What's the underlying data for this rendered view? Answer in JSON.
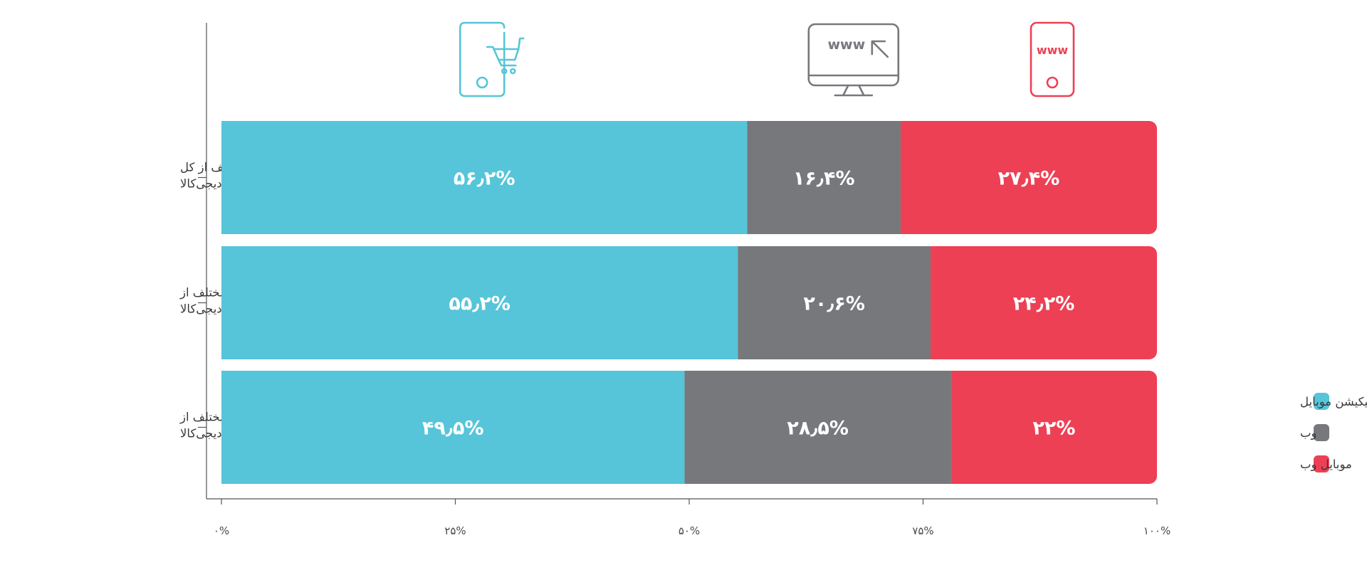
{
  "chart_data": {
    "type": "bar",
    "orientation": "horizontal",
    "stacked": true,
    "categories": [
      [
        "سهم ابزارهای مختلف از کل",
        "بازدیدهای دیجی‌کالا"
      ],
      [
        "سهم ابزارهای مختلف از",
        "تعداد سفارش‌های دیجی‌کالا"
      ],
      [
        "سهم ابزارهای مختلف از",
        "حجم فروش ریالی دیجی‌کالا"
      ]
    ],
    "series": [
      {
        "name": "اپلیکیشن موبایل",
        "color": "#56c5d9",
        "icon": "mobile-cart-icon",
        "values": [
          56.2,
          55.2,
          49.5
        ],
        "labels": [
          "۵۶٫۲%",
          "۵۵٫۲%",
          "۴۹٫۵%"
        ]
      },
      {
        "name": "وب",
        "color": "#77787c",
        "icon": "desktop-www-icon",
        "values": [
          16.4,
          20.6,
          28.5
        ],
        "labels": [
          "۱۶٫۴%",
          "۲۰٫۶%",
          "۲۸٫۵%"
        ]
      },
      {
        "name": "موبایل وب",
        "color": "#ed4055",
        "icon": "mobile-www-icon",
        "values": [
          27.4,
          24.2,
          22
        ],
        "labels": [
          "۲۷٫۴%",
          "۲۴٫۲%",
          "۲۲%"
        ]
      }
    ],
    "xlim": [
      0,
      100
    ],
    "x_ticks": [
      0,
      25,
      50,
      75,
      100
    ],
    "x_tick_labels": [
      "۰%",
      "۲۵%",
      "۵۰%",
      "۷۵%",
      "۱۰۰%"
    ],
    "icon_text": "www",
    "legend_position": "right",
    "grid": false,
    "title": "",
    "xlabel": "",
    "ylabel": ""
  }
}
